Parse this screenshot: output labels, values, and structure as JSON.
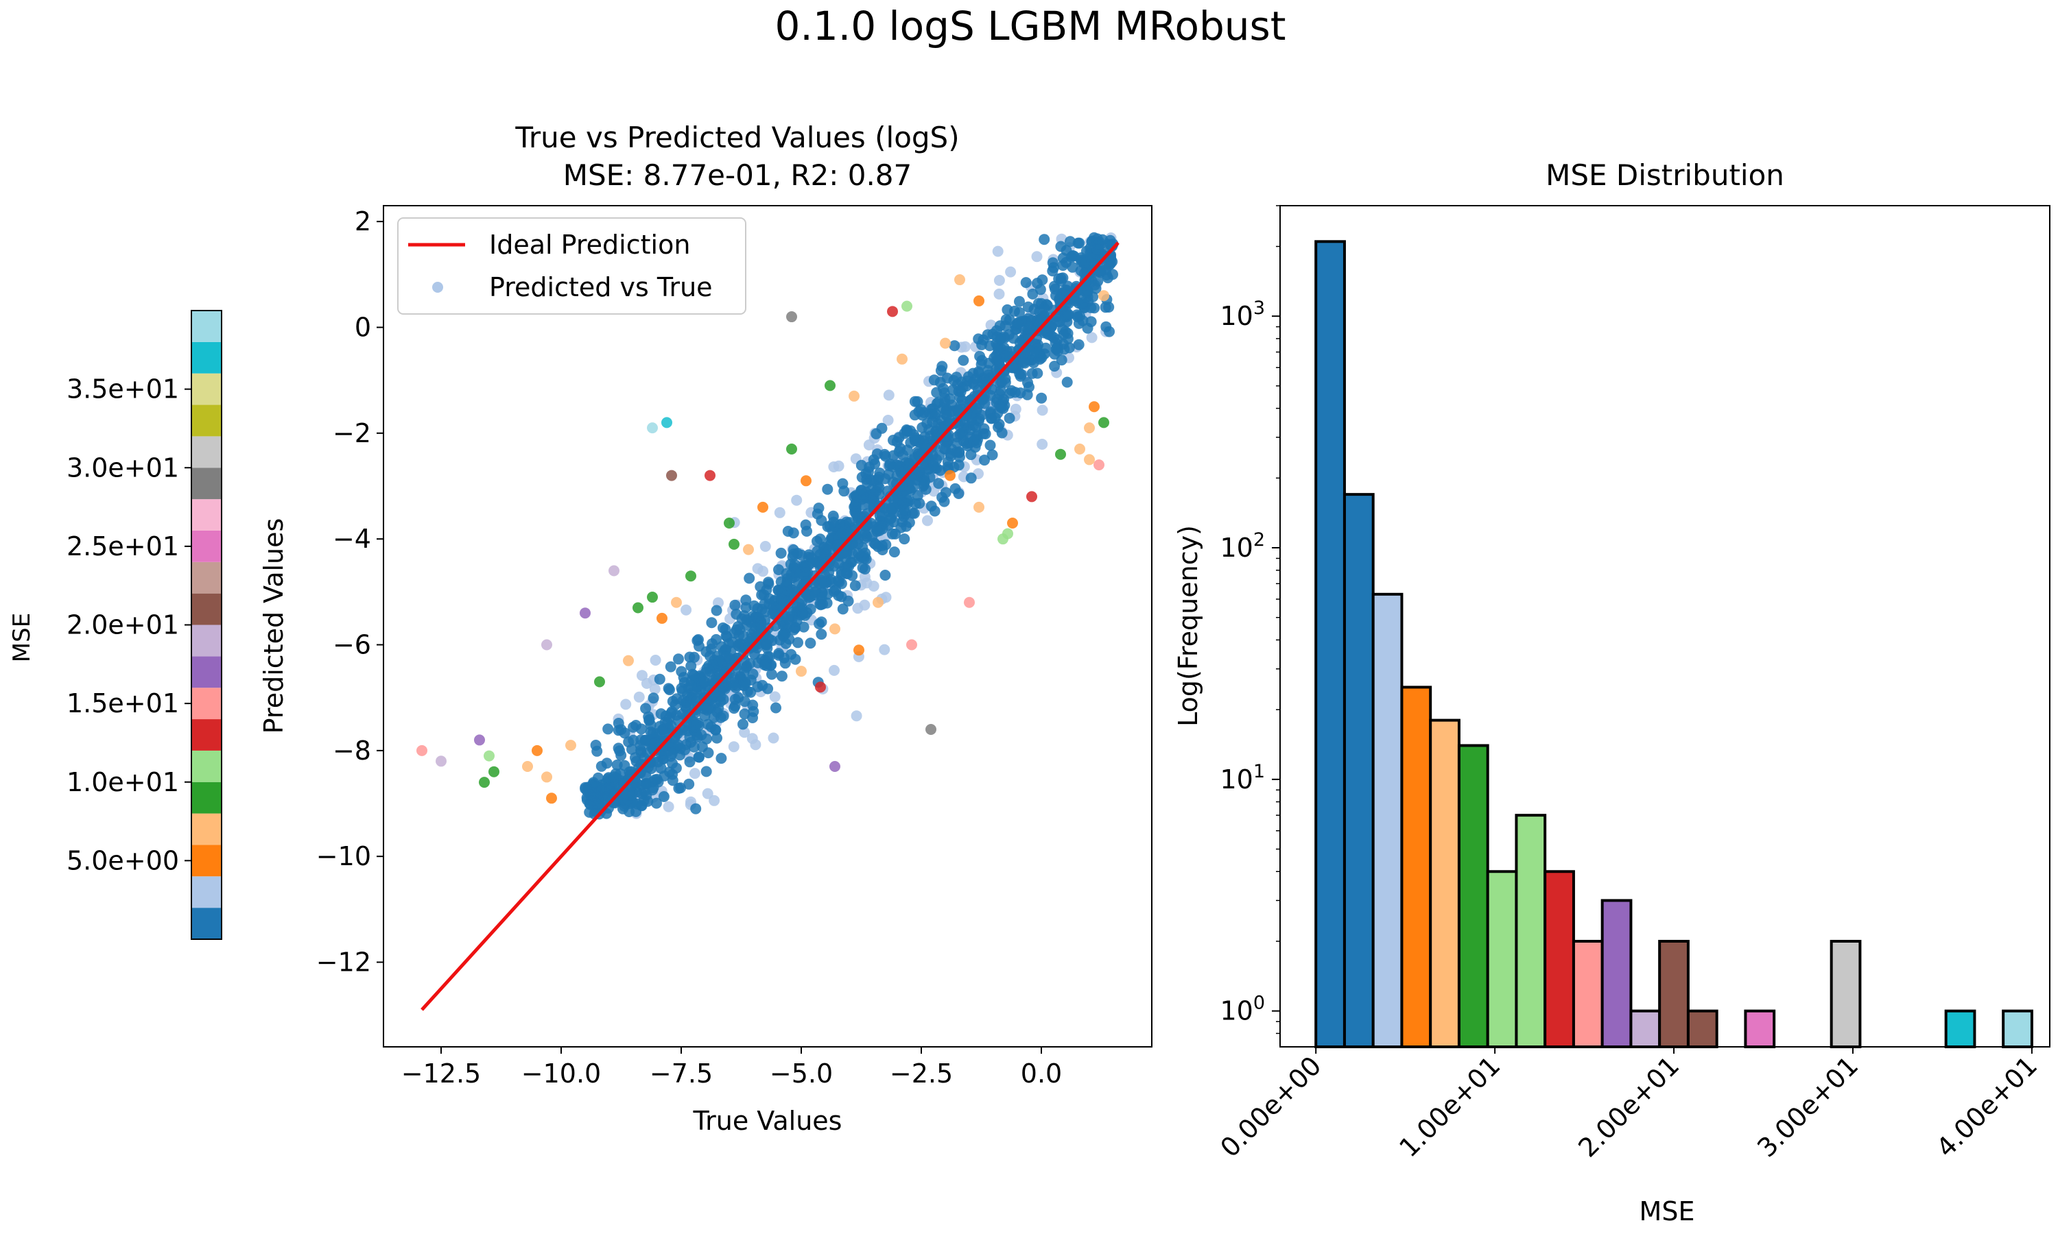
{
  "suptitle": "0.1.0 logS LGBM MRobust",
  "colorbar": {
    "label": "MSE",
    "min": 0,
    "max": 40,
    "ticks": [
      5,
      10,
      15,
      20,
      25,
      30,
      35
    ],
    "tick_labels": [
      "5.0e+00",
      "1.0e+01",
      "1.5e+01",
      "2.0e+01",
      "2.5e+01",
      "3.0e+01",
      "3.5e+01"
    ],
    "colormap": [
      "#1f77b4",
      "#aec7e8",
      "#ff7f0e",
      "#ffbb78",
      "#2ca02c",
      "#98df8a",
      "#d62728",
      "#ff9896",
      "#9467bd",
      "#c5b0d5",
      "#8c564b",
      "#c49c94",
      "#e377c2",
      "#f7b6d2",
      "#7f7f7f",
      "#c7c7c7",
      "#bcbd22",
      "#dbdb8d",
      "#17becf",
      "#9edae5"
    ]
  },
  "chart_data": [
    {
      "type": "scatter",
      "title": "True vs Predicted Values (logS)",
      "subtitle": "MSE: 8.77e-01, R2: 0.87",
      "xlabel": "True Values",
      "ylabel": "Predicted Values",
      "xlim": [
        -13.7,
        2.3
      ],
      "ylim": [
        -13.6,
        2.3
      ],
      "xticks": [
        -12.5,
        -10.0,
        -7.5,
        -5.0,
        -2.5,
        0.0
      ],
      "xtick_labels": [
        "−12.5",
        "−10.0",
        "−7.5",
        "−5.0",
        "−2.5",
        "0.0"
      ],
      "yticks": [
        2,
        0,
        -2,
        -4,
        -6,
        -8,
        -10,
        -12
      ],
      "ytick_labels": [
        "2",
        "0",
        "−2",
        "−4",
        "−6",
        "−8",
        "−10",
        "−12"
      ],
      "legend": [
        "Ideal Prediction",
        "Predicted vs True"
      ],
      "legend_position": "upper-left",
      "ideal_line": {
        "x": [
          -12.9,
          1.6
        ],
        "y": [
          -12.9,
          1.6
        ],
        "color": "#ee1111"
      },
      "main_band": {
        "x_range": [
          -9.5,
          1.5
        ],
        "y_offset_sd": 0.55,
        "color": "#1f77b4",
        "count": 1700
      },
      "light_band": {
        "x_range": [
          -9.0,
          1.5
        ],
        "y_offset_sd": 1.0,
        "color": "#aec7e8",
        "count": 260
      },
      "outliers": [
        {
          "x": -12.9,
          "y": -8.0,
          "c": "#ff9896"
        },
        {
          "x": -12.5,
          "y": -8.2,
          "c": "#c5b0d5"
        },
        {
          "x": -11.7,
          "y": -7.8,
          "c": "#9467bd"
        },
        {
          "x": -11.5,
          "y": -8.1,
          "c": "#98df8a"
        },
        {
          "x": -11.6,
          "y": -8.6,
          "c": "#2ca02c"
        },
        {
          "x": -11.4,
          "y": -8.4,
          "c": "#2ca02c"
        },
        {
          "x": -10.7,
          "y": -8.3,
          "c": "#ffbb78"
        },
        {
          "x": -10.5,
          "y": -8.0,
          "c": "#ff7f0e"
        },
        {
          "x": -10.3,
          "y": -8.5,
          "c": "#ffbb78"
        },
        {
          "x": -10.2,
          "y": -8.9,
          "c": "#ff7f0e"
        },
        {
          "x": -9.8,
          "y": -7.9,
          "c": "#ffbb78"
        },
        {
          "x": -10.3,
          "y": -6.0,
          "c": "#c5b0d5"
        },
        {
          "x": -9.5,
          "y": -5.4,
          "c": "#9467bd"
        },
        {
          "x": -9.2,
          "y": -6.7,
          "c": "#2ca02c"
        },
        {
          "x": -8.6,
          "y": -6.3,
          "c": "#ffbb78"
        },
        {
          "x": -8.4,
          "y": -5.3,
          "c": "#2ca02c"
        },
        {
          "x": -8.1,
          "y": -5.1,
          "c": "#2ca02c"
        },
        {
          "x": -7.9,
          "y": -5.5,
          "c": "#ff7f0e"
        },
        {
          "x": -7.6,
          "y": -5.2,
          "c": "#ffbb78"
        },
        {
          "x": -7.3,
          "y": -4.7,
          "c": "#2ca02c"
        },
        {
          "x": -8.9,
          "y": -4.6,
          "c": "#c5b0d5"
        },
        {
          "x": -7.7,
          "y": -2.8,
          "c": "#8c564b"
        },
        {
          "x": -7.8,
          "y": -1.8,
          "c": "#17becf"
        },
        {
          "x": -8.1,
          "y": -1.9,
          "c": "#9edae5"
        },
        {
          "x": -6.5,
          "y": -3.7,
          "c": "#2ca02c"
        },
        {
          "x": -6.4,
          "y": -4.1,
          "c": "#2ca02c"
        },
        {
          "x": -6.1,
          "y": -4.2,
          "c": "#ffbb78"
        },
        {
          "x": -6.9,
          "y": -2.8,
          "c": "#d62728"
        },
        {
          "x": -5.8,
          "y": -3.4,
          "c": "#ff7f0e"
        },
        {
          "x": -5.2,
          "y": -2.3,
          "c": "#2ca02c"
        },
        {
          "x": -4.9,
          "y": -2.9,
          "c": "#ff7f0e"
        },
        {
          "x": -4.4,
          "y": -1.1,
          "c": "#2ca02c"
        },
        {
          "x": -3.9,
          "y": -1.3,
          "c": "#ffbb78"
        },
        {
          "x": -5.2,
          "y": 0.2,
          "c": "#7f7f7f"
        },
        {
          "x": -3.1,
          "y": 0.3,
          "c": "#d62728"
        },
        {
          "x": -2.8,
          "y": 0.4,
          "c": "#98df8a"
        },
        {
          "x": -1.7,
          "y": 0.9,
          "c": "#ffbb78"
        },
        {
          "x": -1.3,
          "y": 0.5,
          "c": "#ff7f0e"
        },
        {
          "x": -2.9,
          "y": -0.6,
          "c": "#ffbb78"
        },
        {
          "x": -2.0,
          "y": -0.3,
          "c": "#ffbb78"
        },
        {
          "x": -4.3,
          "y": -8.3,
          "c": "#9467bd"
        },
        {
          "x": -2.3,
          "y": -7.6,
          "c": "#7f7f7f"
        },
        {
          "x": -2.7,
          "y": -6.0,
          "c": "#ff9896"
        },
        {
          "x": -4.6,
          "y": -6.8,
          "c": "#d62728"
        },
        {
          "x": -5.0,
          "y": -6.5,
          "c": "#ffbb78"
        },
        {
          "x": -4.3,
          "y": -5.7,
          "c": "#ffbb78"
        },
        {
          "x": -3.8,
          "y": -6.1,
          "c": "#ff7f0e"
        },
        {
          "x": -3.4,
          "y": -5.2,
          "c": "#ffbb78"
        },
        {
          "x": -1.5,
          "y": -5.2,
          "c": "#ff9896"
        },
        {
          "x": -0.8,
          "y": -4.0,
          "c": "#98df8a"
        },
        {
          "x": -0.7,
          "y": -3.9,
          "c": "#98df8a"
        },
        {
          "x": -1.3,
          "y": -3.4,
          "c": "#ffbb78"
        },
        {
          "x": -0.2,
          "y": -3.2,
          "c": "#d62728"
        },
        {
          "x": -0.6,
          "y": -3.7,
          "c": "#ff7f0e"
        },
        {
          "x": 0.8,
          "y": -2.3,
          "c": "#ffbb78"
        },
        {
          "x": 1.0,
          "y": -2.5,
          "c": "#ffbb78"
        },
        {
          "x": 0.4,
          "y": -2.4,
          "c": "#2ca02c"
        },
        {
          "x": 1.3,
          "y": -1.8,
          "c": "#2ca02c"
        },
        {
          "x": 1.0,
          "y": -1.9,
          "c": "#ffbb78"
        },
        {
          "x": 1.2,
          "y": -2.6,
          "c": "#ff9896"
        },
        {
          "x": 1.1,
          "y": -1.5,
          "c": "#ff7f0e"
        },
        {
          "x": -1.9,
          "y": -2.8,
          "c": "#ff7f0e"
        },
        {
          "x": 1.3,
          "y": 0.6,
          "c": "#ffbb78"
        }
      ]
    },
    {
      "type": "bar",
      "title": "MSE Distribution",
      "xlabel": "MSE",
      "ylabel": "Log(Frequency)",
      "yscale": "log",
      "xlim": [
        -2,
        41
      ],
      "ylim": [
        0.7,
        3000
      ],
      "xticks": [
        0,
        10,
        20,
        30,
        40
      ],
      "xtick_labels": [
        "0.00e+00",
        "1.00e+01",
        "2.00e+01",
        "3.00e+01",
        "4.00e+01"
      ],
      "yticks": [
        1,
        10,
        100,
        1000
      ],
      "bin_width": 1.6,
      "bins": [
        {
          "start": 0.0,
          "count": 2100,
          "c": "#1f77b4"
        },
        {
          "start": 1.6,
          "count": 170,
          "c": "#1f77b4"
        },
        {
          "start": 3.2,
          "count": 63,
          "c": "#aec7e8"
        },
        {
          "start": 4.8,
          "count": 25,
          "c": "#ff7f0e"
        },
        {
          "start": 6.4,
          "count": 18,
          "c": "#ffbb78"
        },
        {
          "start": 8.0,
          "count": 14,
          "c": "#2ca02c"
        },
        {
          "start": 9.6,
          "count": 4,
          "c": "#98df8a"
        },
        {
          "start": 11.2,
          "count": 7,
          "c": "#98df8a"
        },
        {
          "start": 12.8,
          "count": 4,
          "c": "#d62728"
        },
        {
          "start": 14.4,
          "count": 2,
          "c": "#ff9896"
        },
        {
          "start": 16.0,
          "count": 3,
          "c": "#9467bd"
        },
        {
          "start": 17.6,
          "count": 1,
          "c": "#c5b0d5"
        },
        {
          "start": 19.2,
          "count": 2,
          "c": "#8c564b"
        },
        {
          "start": 20.8,
          "count": 1,
          "c": "#8c564b"
        },
        {
          "start": 22.4,
          "count": 0,
          "c": "#c49c94"
        },
        {
          "start": 24.0,
          "count": 1,
          "c": "#e377c2"
        },
        {
          "start": 25.6,
          "count": 0,
          "c": "#f7b6d2"
        },
        {
          "start": 27.2,
          "count": 0,
          "c": "#7f7f7f"
        },
        {
          "start": 28.8,
          "count": 2,
          "c": "#c7c7c7"
        },
        {
          "start": 30.4,
          "count": 0,
          "c": "#c7c7c7"
        },
        {
          "start": 32.0,
          "count": 0,
          "c": "#bcbd22"
        },
        {
          "start": 33.6,
          "count": 0,
          "c": "#dbdb8d"
        },
        {
          "start": 35.2,
          "count": 1,
          "c": "#17becf"
        },
        {
          "start": 36.8,
          "count": 0,
          "c": "#17becf"
        },
        {
          "start": 38.4,
          "count": 1,
          "c": "#9edae5"
        }
      ]
    }
  ]
}
